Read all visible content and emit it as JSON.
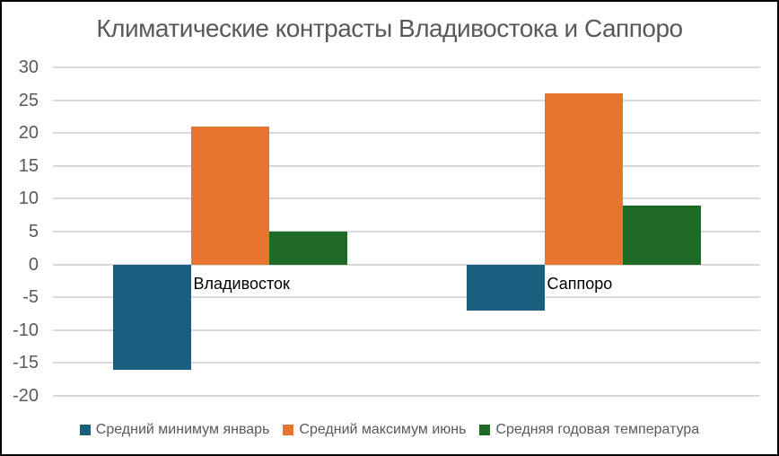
{
  "colors": {
    "grid": "#D9D9D9",
    "axis_text": "#595959",
    "category_text": "#000000",
    "frame_border": "#000000"
  },
  "chart_data": {
    "type": "bar",
    "title": "Климатические контрасты Владивостока и Саппоро",
    "categories": [
      {
        "id": "vladivostok",
        "label": "Владивосток"
      },
      {
        "id": "sapporo",
        "label": "Саппоро"
      }
    ],
    "series": [
      {
        "id": "min-january",
        "name": "Средний минимум январь",
        "color": "#1B5F80",
        "values": [
          -16,
          -7
        ]
      },
      {
        "id": "max-june",
        "name": "Средний максимум июнь",
        "color": "#E8742F",
        "values": [
          21,
          26
        ]
      },
      {
        "id": "avg-annual",
        "name": "Средняя годовая температура",
        "color": "#1D6B24",
        "values": [
          5,
          9
        ]
      }
    ],
    "ylim": [
      -20,
      30
    ],
    "ytick_step": 5,
    "grid": true,
    "legend_position": "bottom"
  }
}
